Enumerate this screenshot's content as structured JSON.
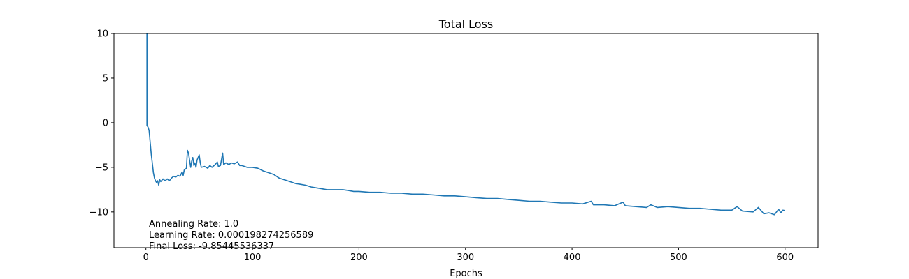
{
  "chart_data": {
    "type": "line",
    "title": "Total Loss",
    "xlabel": "Epochs",
    "ylabel": "",
    "xlim": [
      -30,
      631
    ],
    "ylim": [
      -14,
      10
    ],
    "x_ticks": [
      0,
      100,
      200,
      300,
      400,
      500,
      600
    ],
    "y_ticks": [
      -10,
      -5,
      0,
      5,
      10
    ],
    "x_tick_labels": [
      "0",
      "100",
      "200",
      "300",
      "400",
      "500",
      "600"
    ],
    "y_tick_labels": [
      "−10",
      "−5",
      "0",
      "5",
      "10"
    ],
    "grid": false,
    "series": [
      {
        "color": "#1f77b4",
        "points": [
          [
            1,
            10
          ],
          [
            1,
            7
          ],
          [
            1,
            -0.3
          ],
          [
            2,
            -0.5
          ],
          [
            3,
            -0.9
          ],
          [
            4,
            -2.2
          ],
          [
            5,
            -3.5
          ],
          [
            6,
            -4.5
          ],
          [
            7,
            -5.6
          ],
          [
            8,
            -6.2
          ],
          [
            9,
            -6.5
          ],
          [
            10,
            -6.7
          ],
          [
            11,
            -6.5
          ],
          [
            12,
            -7.0
          ],
          [
            13,
            -6.4
          ],
          [
            14,
            -6.6
          ],
          [
            16,
            -6.3
          ],
          [
            18,
            -6.5
          ],
          [
            20,
            -6.3
          ],
          [
            22,
            -6.5
          ],
          [
            24,
            -6.2
          ],
          [
            26,
            -6.0
          ],
          [
            28,
            -6.1
          ],
          [
            30,
            -5.9
          ],
          [
            32,
            -6.0
          ],
          [
            34,
            -5.5
          ],
          [
            35,
            -5.9
          ],
          [
            36,
            -5.3
          ],
          [
            38,
            -5.1
          ],
          [
            39,
            -3.1
          ],
          [
            40,
            -3.4
          ],
          [
            42,
            -5.0
          ],
          [
            43,
            -4.3
          ],
          [
            44,
            -3.9
          ],
          [
            45,
            -4.8
          ],
          [
            46,
            -4.5
          ],
          [
            47,
            -5.0
          ],
          [
            48,
            -4.2
          ],
          [
            50,
            -3.6
          ],
          [
            51,
            -4.5
          ],
          [
            52,
            -5.0
          ],
          [
            55,
            -4.9
          ],
          [
            58,
            -5.1
          ],
          [
            60,
            -4.8
          ],
          [
            62,
            -5.0
          ],
          [
            65,
            -4.7
          ],
          [
            67,
            -4.4
          ],
          [
            68,
            -4.9
          ],
          [
            70,
            -4.8
          ],
          [
            72,
            -3.4
          ],
          [
            73,
            -4.7
          ],
          [
            75,
            -4.5
          ],
          [
            78,
            -4.7
          ],
          [
            80,
            -4.5
          ],
          [
            83,
            -4.6
          ],
          [
            86,
            -4.4
          ],
          [
            88,
            -4.8
          ],
          [
            90,
            -4.8
          ],
          [
            95,
            -5.0
          ],
          [
            100,
            -5.0
          ],
          [
            105,
            -5.1
          ],
          [
            110,
            -5.4
          ],
          [
            115,
            -5.6
          ],
          [
            120,
            -5.8
          ],
          [
            125,
            -6.2
          ],
          [
            130,
            -6.4
          ],
          [
            135,
            -6.6
          ],
          [
            140,
            -6.8
          ],
          [
            145,
            -6.9
          ],
          [
            150,
            -7.0
          ],
          [
            155,
            -7.2
          ],
          [
            160,
            -7.3
          ],
          [
            165,
            -7.4
          ],
          [
            170,
            -7.5
          ],
          [
            175,
            -7.5
          ],
          [
            180,
            -7.5
          ],
          [
            185,
            -7.5
          ],
          [
            190,
            -7.6
          ],
          [
            195,
            -7.7
          ],
          [
            200,
            -7.7
          ],
          [
            210,
            -7.8
          ],
          [
            220,
            -7.8
          ],
          [
            230,
            -7.9
          ],
          [
            240,
            -7.9
          ],
          [
            250,
            -8.0
          ],
          [
            260,
            -8.0
          ],
          [
            270,
            -8.1
          ],
          [
            280,
            -8.2
          ],
          [
            290,
            -8.2
          ],
          [
            300,
            -8.3
          ],
          [
            310,
            -8.4
          ],
          [
            320,
            -8.5
          ],
          [
            330,
            -8.5
          ],
          [
            340,
            -8.6
          ],
          [
            350,
            -8.7
          ],
          [
            360,
            -8.8
          ],
          [
            370,
            -8.8
          ],
          [
            380,
            -8.9
          ],
          [
            390,
            -9.0
          ],
          [
            400,
            -9.0
          ],
          [
            410,
            -9.1
          ],
          [
            418,
            -8.8
          ],
          [
            420,
            -9.2
          ],
          [
            430,
            -9.2
          ],
          [
            440,
            -9.3
          ],
          [
            448,
            -8.9
          ],
          [
            450,
            -9.3
          ],
          [
            460,
            -9.4
          ],
          [
            470,
            -9.5
          ],
          [
            474,
            -9.2
          ],
          [
            480,
            -9.5
          ],
          [
            490,
            -9.4
          ],
          [
            500,
            -9.5
          ],
          [
            510,
            -9.6
          ],
          [
            520,
            -9.6
          ],
          [
            530,
            -9.7
          ],
          [
            540,
            -9.8
          ],
          [
            550,
            -9.8
          ],
          [
            555,
            -9.4
          ],
          [
            560,
            -9.9
          ],
          [
            570,
            -10.0
          ],
          [
            575,
            -9.5
          ],
          [
            580,
            -10.2
          ],
          [
            585,
            -10.1
          ],
          [
            590,
            -10.3
          ],
          [
            594,
            -9.7
          ],
          [
            596,
            -10.1
          ],
          [
            598,
            -9.8
          ],
          [
            600,
            -9.85
          ]
        ]
      }
    ],
    "annotations": [
      "Annealing Rate: 1.0",
      "Learning Rate: 0.000198274256589",
      "Final Loss: -9.85445536337"
    ]
  }
}
